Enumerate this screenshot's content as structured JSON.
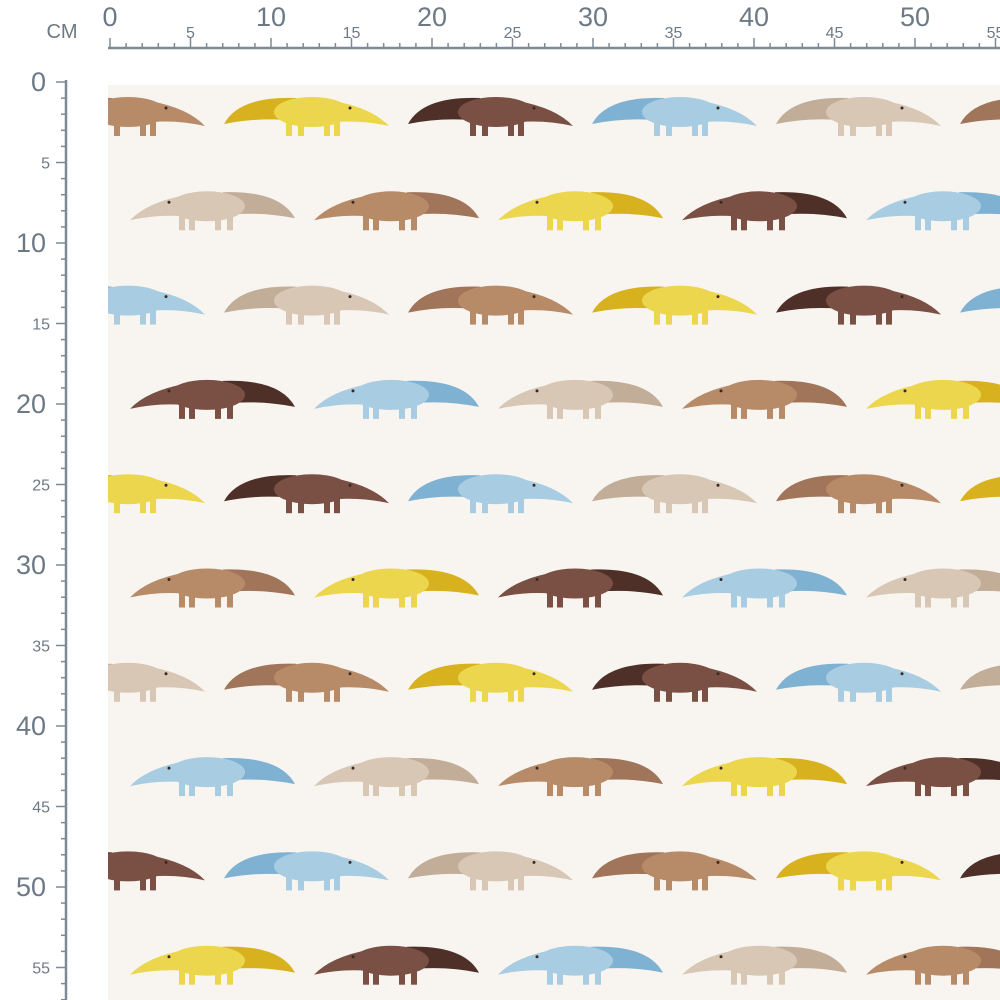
{
  "unit": "CM",
  "top_ruler": {
    "labels": [
      "0",
      "5",
      "10",
      "15",
      "20",
      "25",
      "30",
      "35",
      "40",
      "45",
      "50",
      "55"
    ]
  },
  "left_ruler": {
    "labels": [
      "0",
      "5",
      "10",
      "15",
      "20",
      "25",
      "30",
      "35",
      "40",
      "45",
      "50",
      "55"
    ]
  }
}
